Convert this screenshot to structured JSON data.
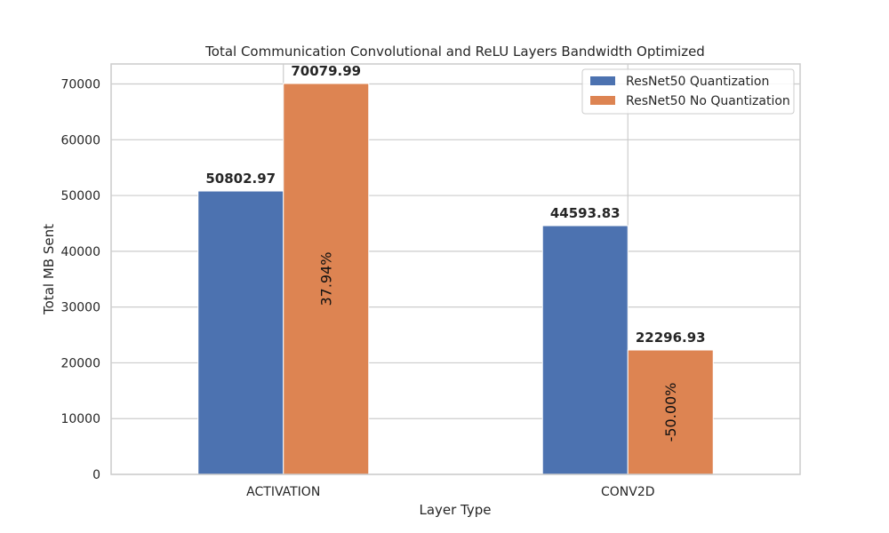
{
  "chart_data": {
    "type": "bar",
    "title": "Total Communication Convolutional and ReLU Layers Bandwidth Optimized",
    "xlabel": "Layer Type",
    "ylabel": "Total MB Sent",
    "categories": [
      "ACTIVATION",
      "CONV2D"
    ],
    "series": [
      {
        "name": "ResNet50 Quantization",
        "color": "#4c72b0",
        "values": [
          50802.97,
          44593.83
        ],
        "value_labels": [
          "50802.97",
          "44593.83"
        ]
      },
      {
        "name": "ResNet50 No Quantization",
        "color": "#dd8452",
        "values": [
          70079.99,
          22296.93
        ],
        "value_labels": [
          "70079.99",
          "22296.93"
        ],
        "percent_labels": [
          "37.94%",
          "-50.00%"
        ]
      }
    ],
    "ylim": [
      0,
      73584
    ],
    "yticks": [
      0,
      10000,
      20000,
      30000,
      40000,
      50000,
      60000,
      70000
    ],
    "ytick_labels": [
      "0",
      "10000",
      "20000",
      "30000",
      "40000",
      "50000",
      "60000",
      "70000"
    ],
    "grid": true,
    "legend_position": "top-right"
  }
}
